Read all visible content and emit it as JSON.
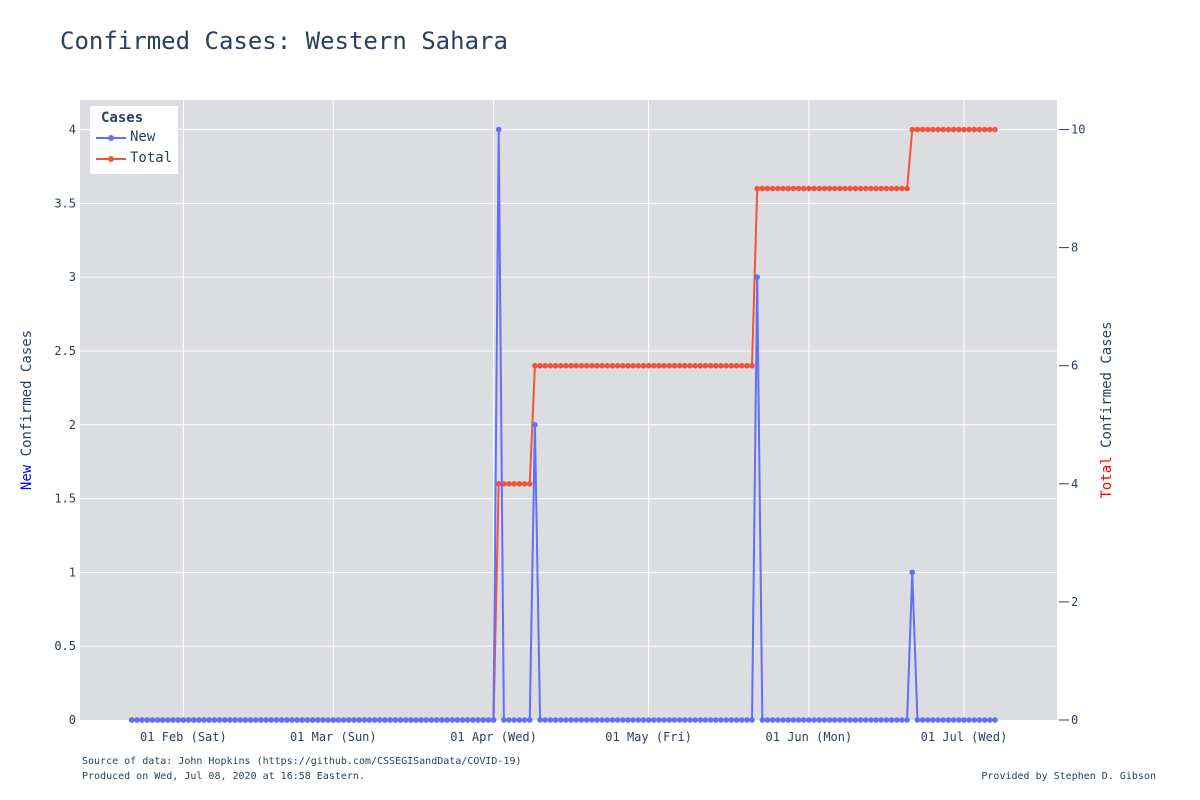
{
  "title": "Confirmed Cases: Western Sahara",
  "legend": {
    "title": "Cases",
    "items": [
      "New",
      "Total"
    ]
  },
  "colors": {
    "new": "#636efa",
    "total": "#ef553b",
    "plot_bg": "#e5ecf6",
    "grid": "#ffffff",
    "text": "#2a3f5f",
    "new_label": "#0000ff",
    "total_label": "#ff0000"
  },
  "y_left_title": {
    "highlight": "New",
    "rest": " Confirmed Cases"
  },
  "y_right_title": {
    "highlight": "Total",
    "rest": " Confirmed Cases"
  },
  "footer": {
    "source": "Source of data: John Hopkins (https://github.com/CSSEGISandData/COVID-19)",
    "produced": "Produced on Wed, Jul 08, 2020 at 16:58 Eastern.",
    "provided": "Provided by Stephen D. Gibson"
  },
  "chart_data": {
    "type": "line",
    "x_start": "2020-01-22",
    "x_end": "2020-07-07",
    "xlim": [
      "2020-01-12",
      "2020-07-19"
    ],
    "x_ticks": [
      {
        "date": "2020-02-01",
        "label": "01 Feb (Sat)"
      },
      {
        "date": "2020-03-01",
        "label": "01 Mar (Sun)"
      },
      {
        "date": "2020-04-01",
        "label": "01 Apr (Wed)"
      },
      {
        "date": "2020-05-01",
        "label": "01 May (Fri)"
      },
      {
        "date": "2020-06-01",
        "label": "01 Jun (Mon)"
      },
      {
        "date": "2020-07-01",
        "label": "01 Jul (Wed)"
      }
    ],
    "y_left": {
      "ylim": [
        0,
        4.2
      ],
      "ticks": [
        "0",
        "0.5",
        "1",
        "1.5",
        "2",
        "2.5",
        "3",
        "3.5",
        "4"
      ]
    },
    "y_right": {
      "ylim": [
        0,
        10.5
      ],
      "ticks": [
        "0",
        "2",
        "4",
        "6",
        "8",
        "10"
      ]
    },
    "grid": true,
    "legend_position": "top-left",
    "series": [
      {
        "name": "New",
        "axis": "left",
        "nonzero_points": [
          {
            "date": "2020-04-02",
            "value": 4
          },
          {
            "date": "2020-04-09",
            "value": 2
          },
          {
            "date": "2020-05-22",
            "value": 3
          },
          {
            "date": "2020-06-21",
            "value": 1
          }
        ],
        "default_value": 0
      },
      {
        "name": "Total",
        "axis": "right",
        "steps": [
          {
            "from": "2020-01-22",
            "value": 0
          },
          {
            "from": "2020-04-02",
            "value": 4
          },
          {
            "from": "2020-04-09",
            "value": 6
          },
          {
            "from": "2020-05-22",
            "value": 9
          },
          {
            "from": "2020-06-21",
            "value": 10
          }
        ]
      }
    ]
  }
}
